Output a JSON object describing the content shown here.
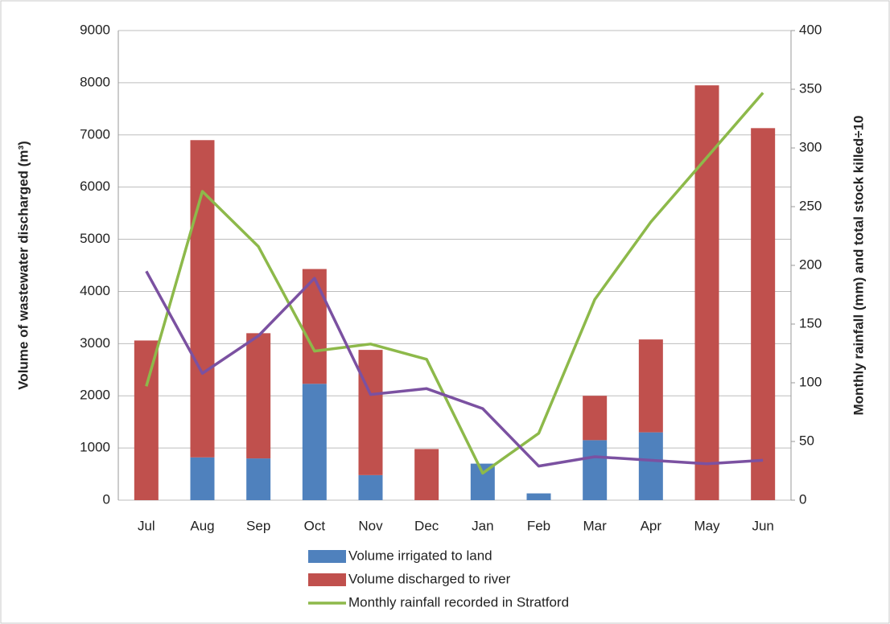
{
  "chart_data": {
    "type": "bar",
    "stacked": true,
    "grid": true,
    "y_label": "Volume of wastewater discharged (m³)",
    "y2_label": "Monthly rainfall (mm) and total stock killed÷10",
    "categories": [
      "Jul",
      "Aug",
      "Sep",
      "Oct",
      "Nov",
      "Dec",
      "Jan",
      "Feb",
      "Mar",
      "Apr",
      "May",
      "Jun"
    ],
    "ylim": [
      0,
      9000
    ],
    "yticks": [
      0,
      1000,
      2000,
      3000,
      4000,
      5000,
      6000,
      7000,
      8000,
      9000
    ],
    "y2lim": [
      0,
      400
    ],
    "y2ticks": [
      0,
      50,
      100,
      150,
      200,
      250,
      300,
      350,
      400
    ],
    "series": [
      {
        "name": "Volume irrigated to land",
        "type": "bar",
        "color": "#4f81bd",
        "values": [
          0,
          820,
          800,
          2230,
          480,
          0,
          700,
          130,
          1150,
          1300,
          0,
          0
        ]
      },
      {
        "name": "Volume discharged to river",
        "type": "bar",
        "color": "#c0504d",
        "values": [
          3060,
          6080,
          2400,
          2200,
          2400,
          980,
          0,
          0,
          850,
          1780,
          7950,
          7130
        ]
      },
      {
        "name": "Monthly rainfall recorded in Stratford",
        "type": "line",
        "axis": "y2",
        "color": "#8db94a",
        "values": [
          97,
          263,
          216,
          127,
          133,
          120,
          23,
          57,
          171,
          237,
          292,
          347
        ]
      },
      {
        "type": "line",
        "axis": "y2",
        "color": "#7b51a1",
        "values": [
          195,
          108,
          140,
          189,
          90,
          95,
          78,
          29,
          37,
          34,
          31,
          34
        ]
      }
    ]
  }
}
